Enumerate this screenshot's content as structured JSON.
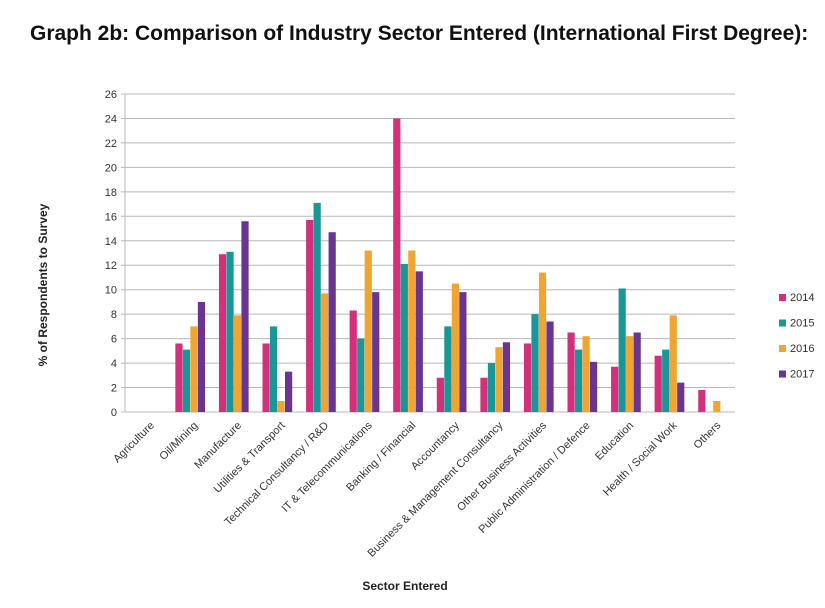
{
  "page": {
    "title": "Graph 2b: Comparison of Industry Sector Entered (International First Degree):"
  },
  "chart_data": {
    "type": "bar",
    "title": "",
    "xlabel": "Sector Entered",
    "ylabel": "% of Respondents to Survey",
    "ylim": [
      0,
      26
    ],
    "yticks": [
      0,
      2,
      4,
      6,
      8,
      10,
      12,
      14,
      16,
      18,
      20,
      22,
      24,
      26
    ],
    "grid": true,
    "legend_position": "right",
    "categories": [
      "Agriculture",
      "Oil/Mining",
      "Manufacture",
      "Utilities & Transport",
      "Technical Consultancy / R&D",
      "IT & Telecommunications",
      "Banking / Financial",
      "Accountancy",
      "Business & Management Consultancy",
      "Other Business Activities",
      "Public Administration / Defence",
      "Education",
      "Health / Social Work",
      "Others"
    ],
    "series": [
      {
        "name": "2014",
        "color": "#d1307a",
        "values": [
          0,
          5.6,
          12.9,
          5.6,
          15.7,
          8.3,
          24.0,
          2.8,
          2.8,
          5.6,
          6.5,
          3.7,
          4.6,
          1.8
        ]
      },
      {
        "name": "2015",
        "color": "#1a9598",
        "values": [
          0,
          5.1,
          13.1,
          7.0,
          17.1,
          6.0,
          12.1,
          7.0,
          4.0,
          8.0,
          5.1,
          10.1,
          5.1,
          0
        ]
      },
      {
        "name": "2016",
        "color": "#f0a431",
        "values": [
          0,
          7.0,
          7.9,
          0.9,
          9.7,
          13.2,
          13.2,
          10.5,
          5.3,
          11.4,
          6.2,
          6.2,
          7.9,
          0.9
        ]
      },
      {
        "name": "2017",
        "color": "#6a3590",
        "values": [
          0,
          9.0,
          15.6,
          3.3,
          14.7,
          9.8,
          11.5,
          9.8,
          5.7,
          7.4,
          4.1,
          6.5,
          2.4,
          0
        ]
      }
    ]
  }
}
